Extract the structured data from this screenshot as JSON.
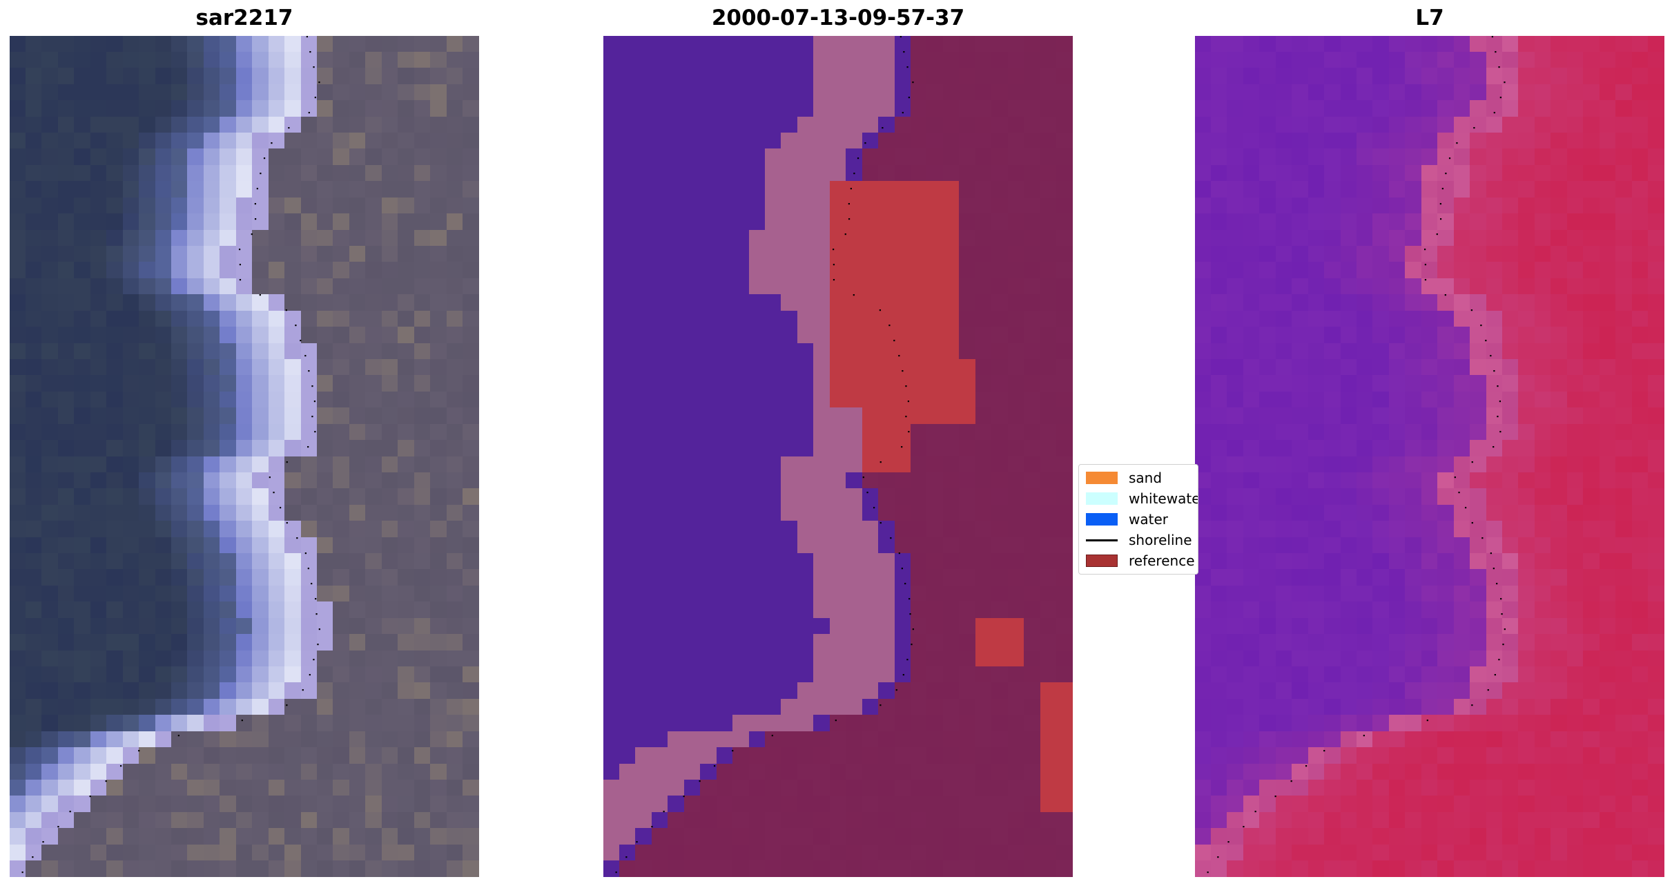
{
  "panels": [
    {
      "title": "sar2217"
    },
    {
      "title": "2000-07-13-09-57-37"
    },
    {
      "title": "L7"
    }
  ],
  "legend": {
    "items": [
      {
        "label": "sand",
        "color": "#f58a34",
        "kind": "patch"
      },
      {
        "label": "whitewater",
        "color": "#ccffff",
        "kind": "patch"
      },
      {
        "label": "water",
        "color": "#0a5ff5",
        "kind": "patch"
      },
      {
        "label": "shoreline",
        "color": "#000000",
        "kind": "line"
      },
      {
        "label": "reference",
        "color": "#a83232",
        "kind": "patch",
        "border": "#6e1c1c"
      }
    ]
  },
  "colors": {
    "classified_water": "#54239b",
    "classified_whitewater": "#a7618f",
    "classified_land": "#7c2556",
    "classified_reference": "#bf3a44",
    "l7_water": "#7a28b2",
    "l7_land": "#cc2454",
    "rgb_water": "#2b3658",
    "rgb_surf": "#eef0fb",
    "rgb_land": "#675f72"
  }
}
